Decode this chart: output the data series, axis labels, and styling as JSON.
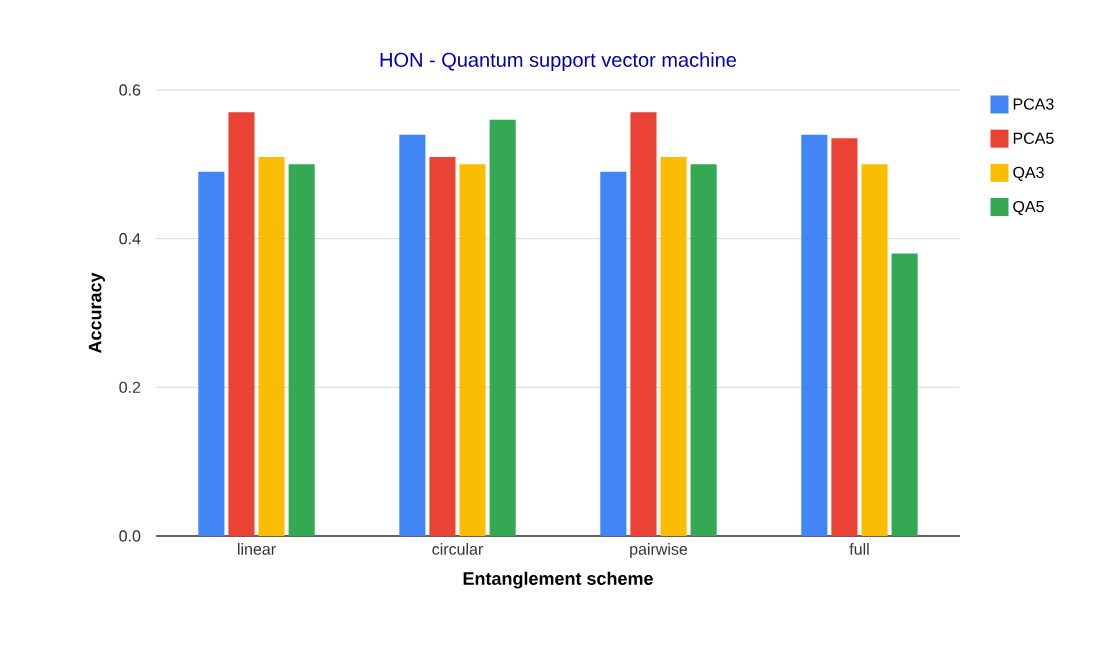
{
  "chart_data": {
    "type": "bar",
    "title": "HON - Quantum support vector machine",
    "xlabel": "Entanglement scheme",
    "ylabel": "Accuracy",
    "categories": [
      "linear",
      "circular",
      "pairwise",
      "full"
    ],
    "series": [
      {
        "name": "PCA3",
        "color": "#4285f4",
        "values": [
          0.49,
          0.54,
          0.49,
          0.54
        ]
      },
      {
        "name": "PCA5",
        "color": "#ea4335",
        "values": [
          0.57,
          0.51,
          0.57,
          0.535
        ]
      },
      {
        "name": "QA3",
        "color": "#fbbc04",
        "values": [
          0.51,
          0.5,
          0.51,
          0.5
        ]
      },
      {
        "name": "QA5",
        "color": "#34a853",
        "values": [
          0.5,
          0.56,
          0.5,
          0.38
        ]
      }
    ],
    "ylim": [
      0,
      0.6
    ],
    "yticks": [
      {
        "value": 0,
        "label": "0.0"
      },
      {
        "value": 0.2,
        "label": "0.2"
      },
      {
        "value": 0.4,
        "label": "0.4"
      },
      {
        "value": 0.6,
        "label": "0.6"
      }
    ],
    "grid": "y",
    "legend": "right"
  }
}
